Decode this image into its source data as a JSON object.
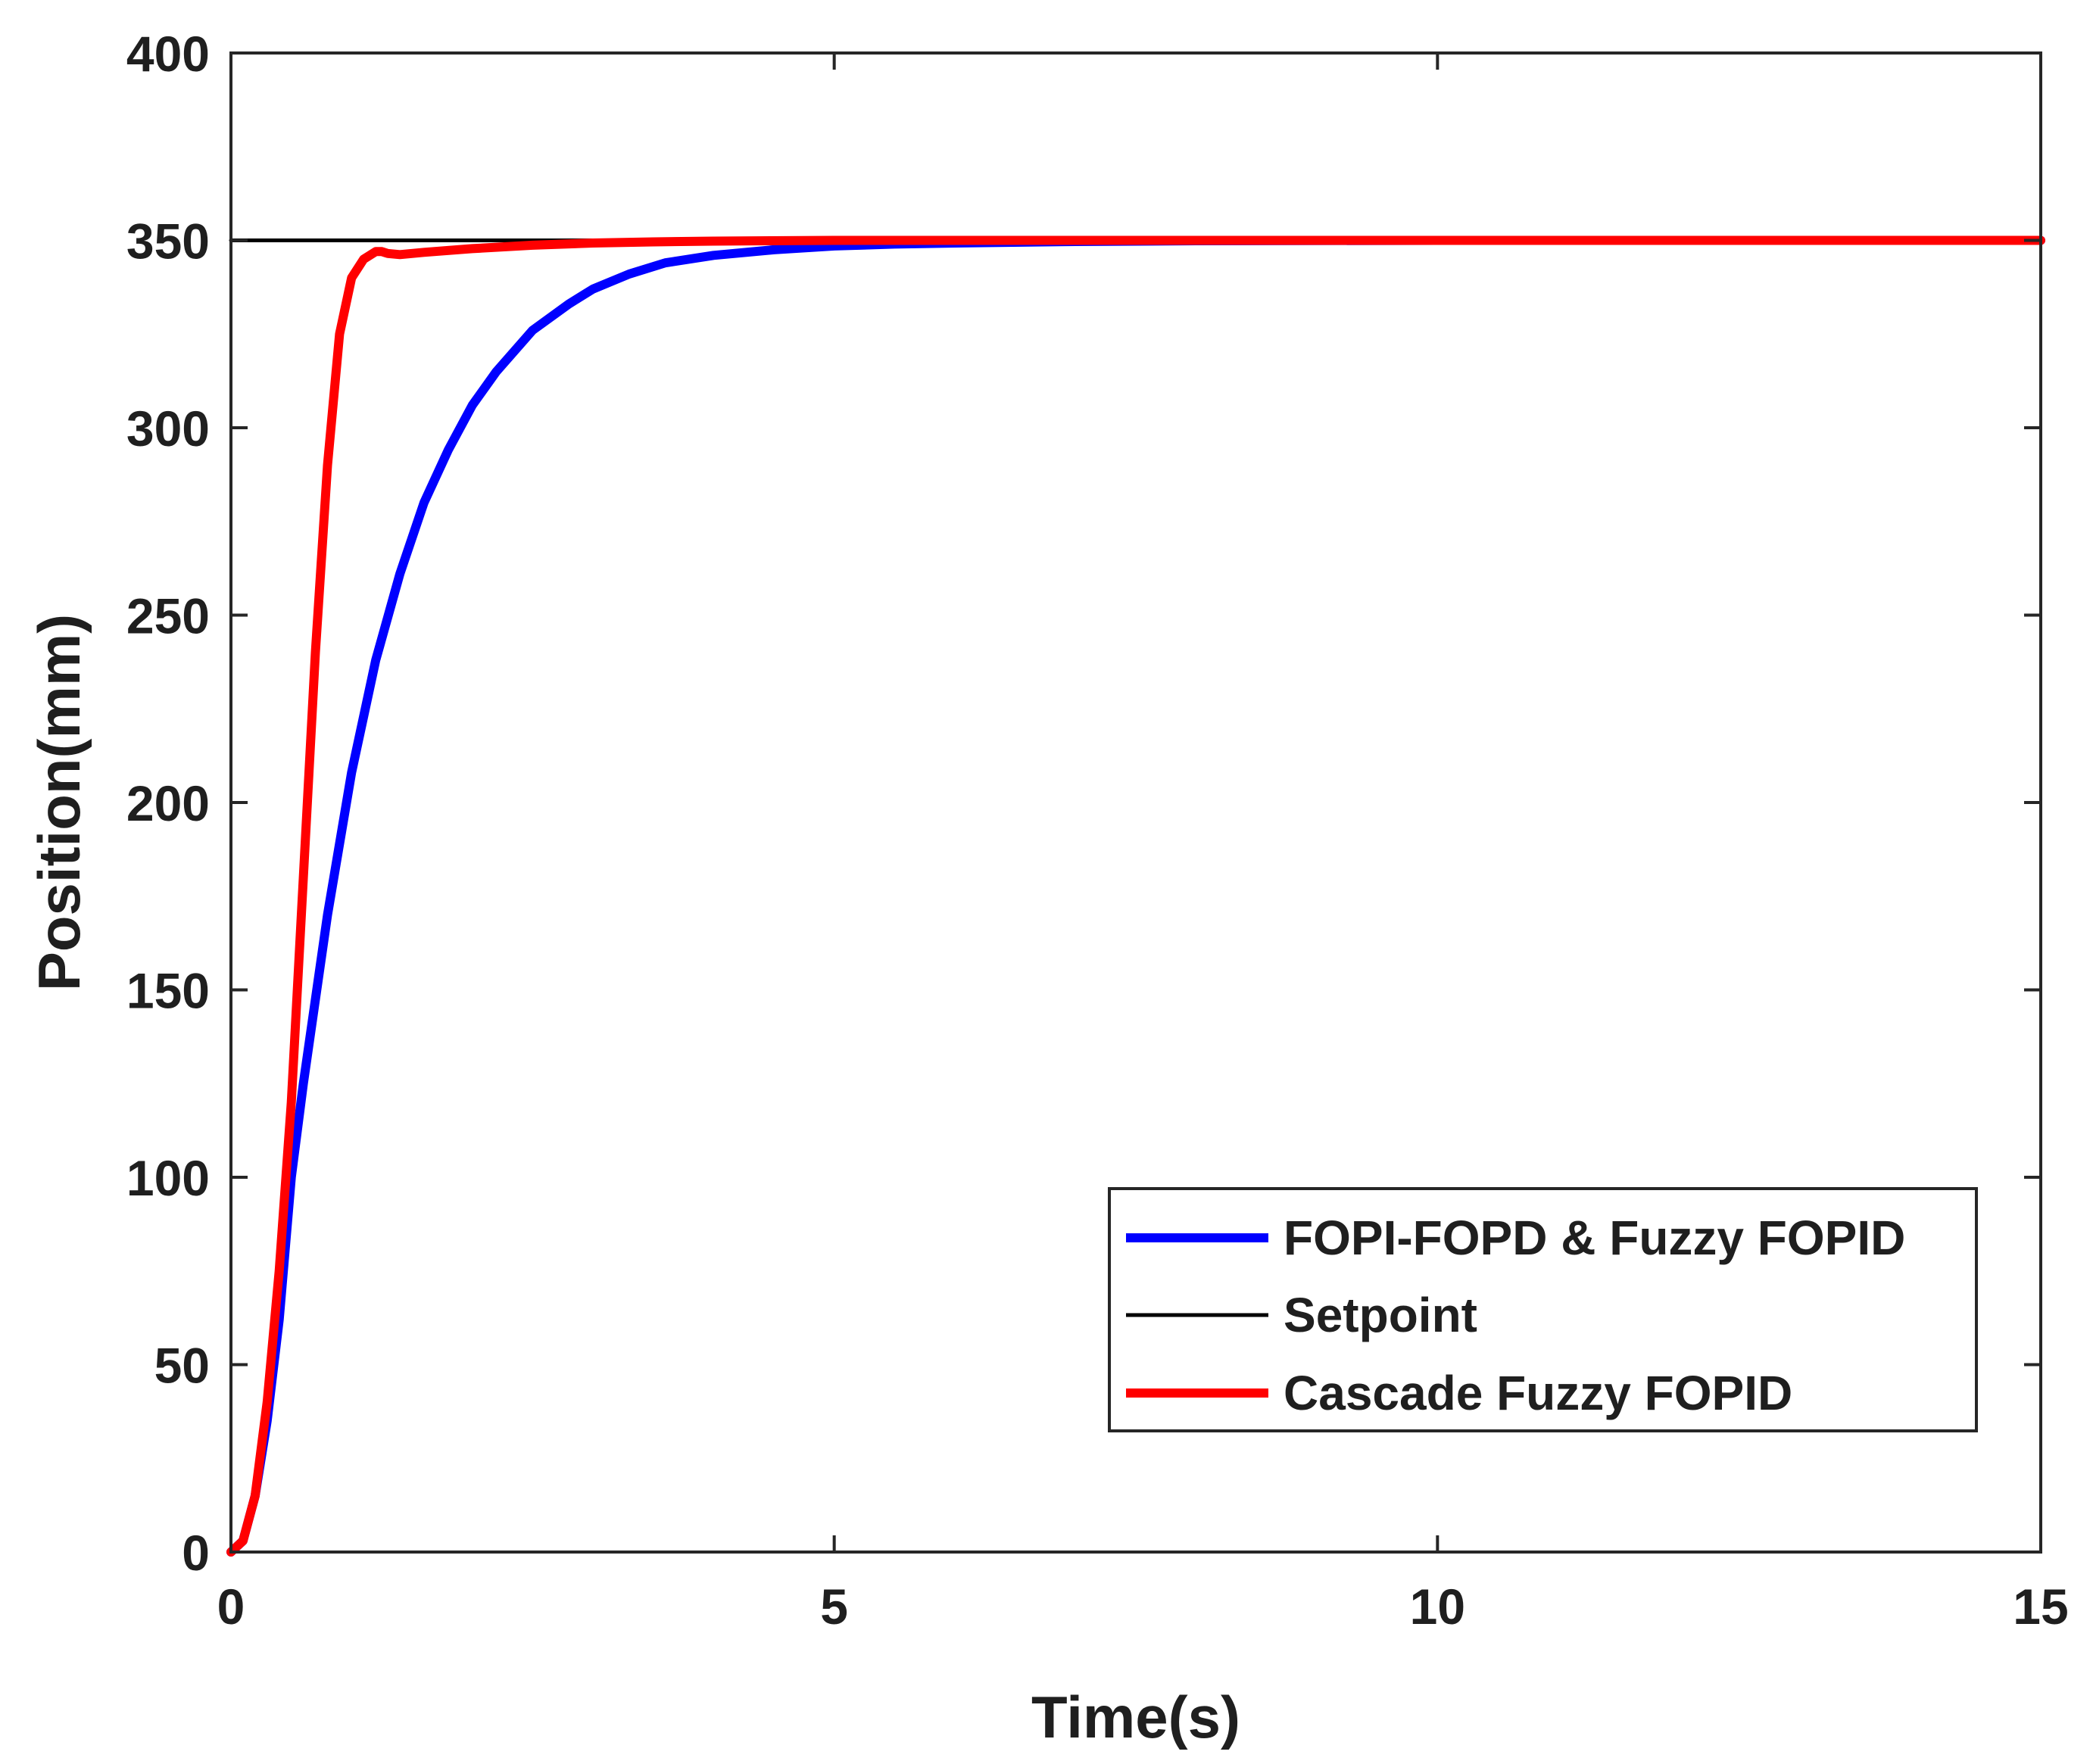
{
  "chart_data": {
    "type": "line",
    "title": "",
    "xlabel": "Time(s)",
    "ylabel": "Position(mm)",
    "xlim": [
      0,
      15
    ],
    "ylim": [
      0,
      400
    ],
    "xticks": [
      0,
      5,
      10,
      15
    ],
    "yticks": [
      0,
      50,
      100,
      150,
      200,
      250,
      300,
      350,
      400
    ],
    "xtick_labels": [
      "0",
      "5",
      "10",
      "15"
    ],
    "ytick_labels": [
      "0",
      "50",
      "100",
      "150",
      "200",
      "250",
      "300",
      "350",
      "400"
    ],
    "grid": false,
    "legend_position": "bottom-right",
    "series": [
      {
        "name": "FOPI-FOPD & Fuzzy FOPID",
        "color": "#0000ff",
        "line_width": "thick",
        "x": [
          0,
          0.1,
          0.2,
          0.3,
          0.4,
          0.5,
          0.6,
          0.8,
          1.0,
          1.2,
          1.4,
          1.6,
          1.8,
          2.0,
          2.2,
          2.5,
          2.8,
          3.0,
          3.3,
          3.6,
          4.0,
          4.5,
          5.0,
          5.5,
          6.0,
          7.0,
          8.0,
          10.0,
          12.0,
          15.0
        ],
        "y": [
          0,
          3,
          15,
          35,
          62,
          100,
          125,
          170,
          208,
          238,
          261,
          280,
          294,
          306,
          315,
          326,
          333,
          337,
          341,
          344,
          346,
          347.5,
          348.5,
          349,
          349.3,
          349.7,
          349.9,
          350,
          350,
          350
        ]
      },
      {
        "name": "Setpoint",
        "color": "#000000",
        "line_width": "thin",
        "x": [
          0,
          15
        ],
        "y": [
          350,
          350
        ]
      },
      {
        "name": "Cascade Fuzzy FOPID",
        "color": "#ff0000",
        "line_width": "thick",
        "x": [
          0,
          0.1,
          0.2,
          0.3,
          0.4,
          0.5,
          0.6,
          0.7,
          0.8,
          0.9,
          1.0,
          1.1,
          1.2,
          1.25,
          1.3,
          1.4,
          1.6,
          2.0,
          2.5,
          3.0,
          3.5,
          4.0,
          5.0,
          6.0,
          8.0,
          10.0,
          15.0
        ],
        "y": [
          0,
          3,
          15,
          40,
          75,
          120,
          180,
          240,
          290,
          325,
          340,
          345,
          347,
          347,
          346.5,
          346.2,
          346.8,
          347.8,
          348.7,
          349.3,
          349.6,
          349.8,
          350,
          350,
          350,
          350,
          350
        ]
      }
    ]
  }
}
